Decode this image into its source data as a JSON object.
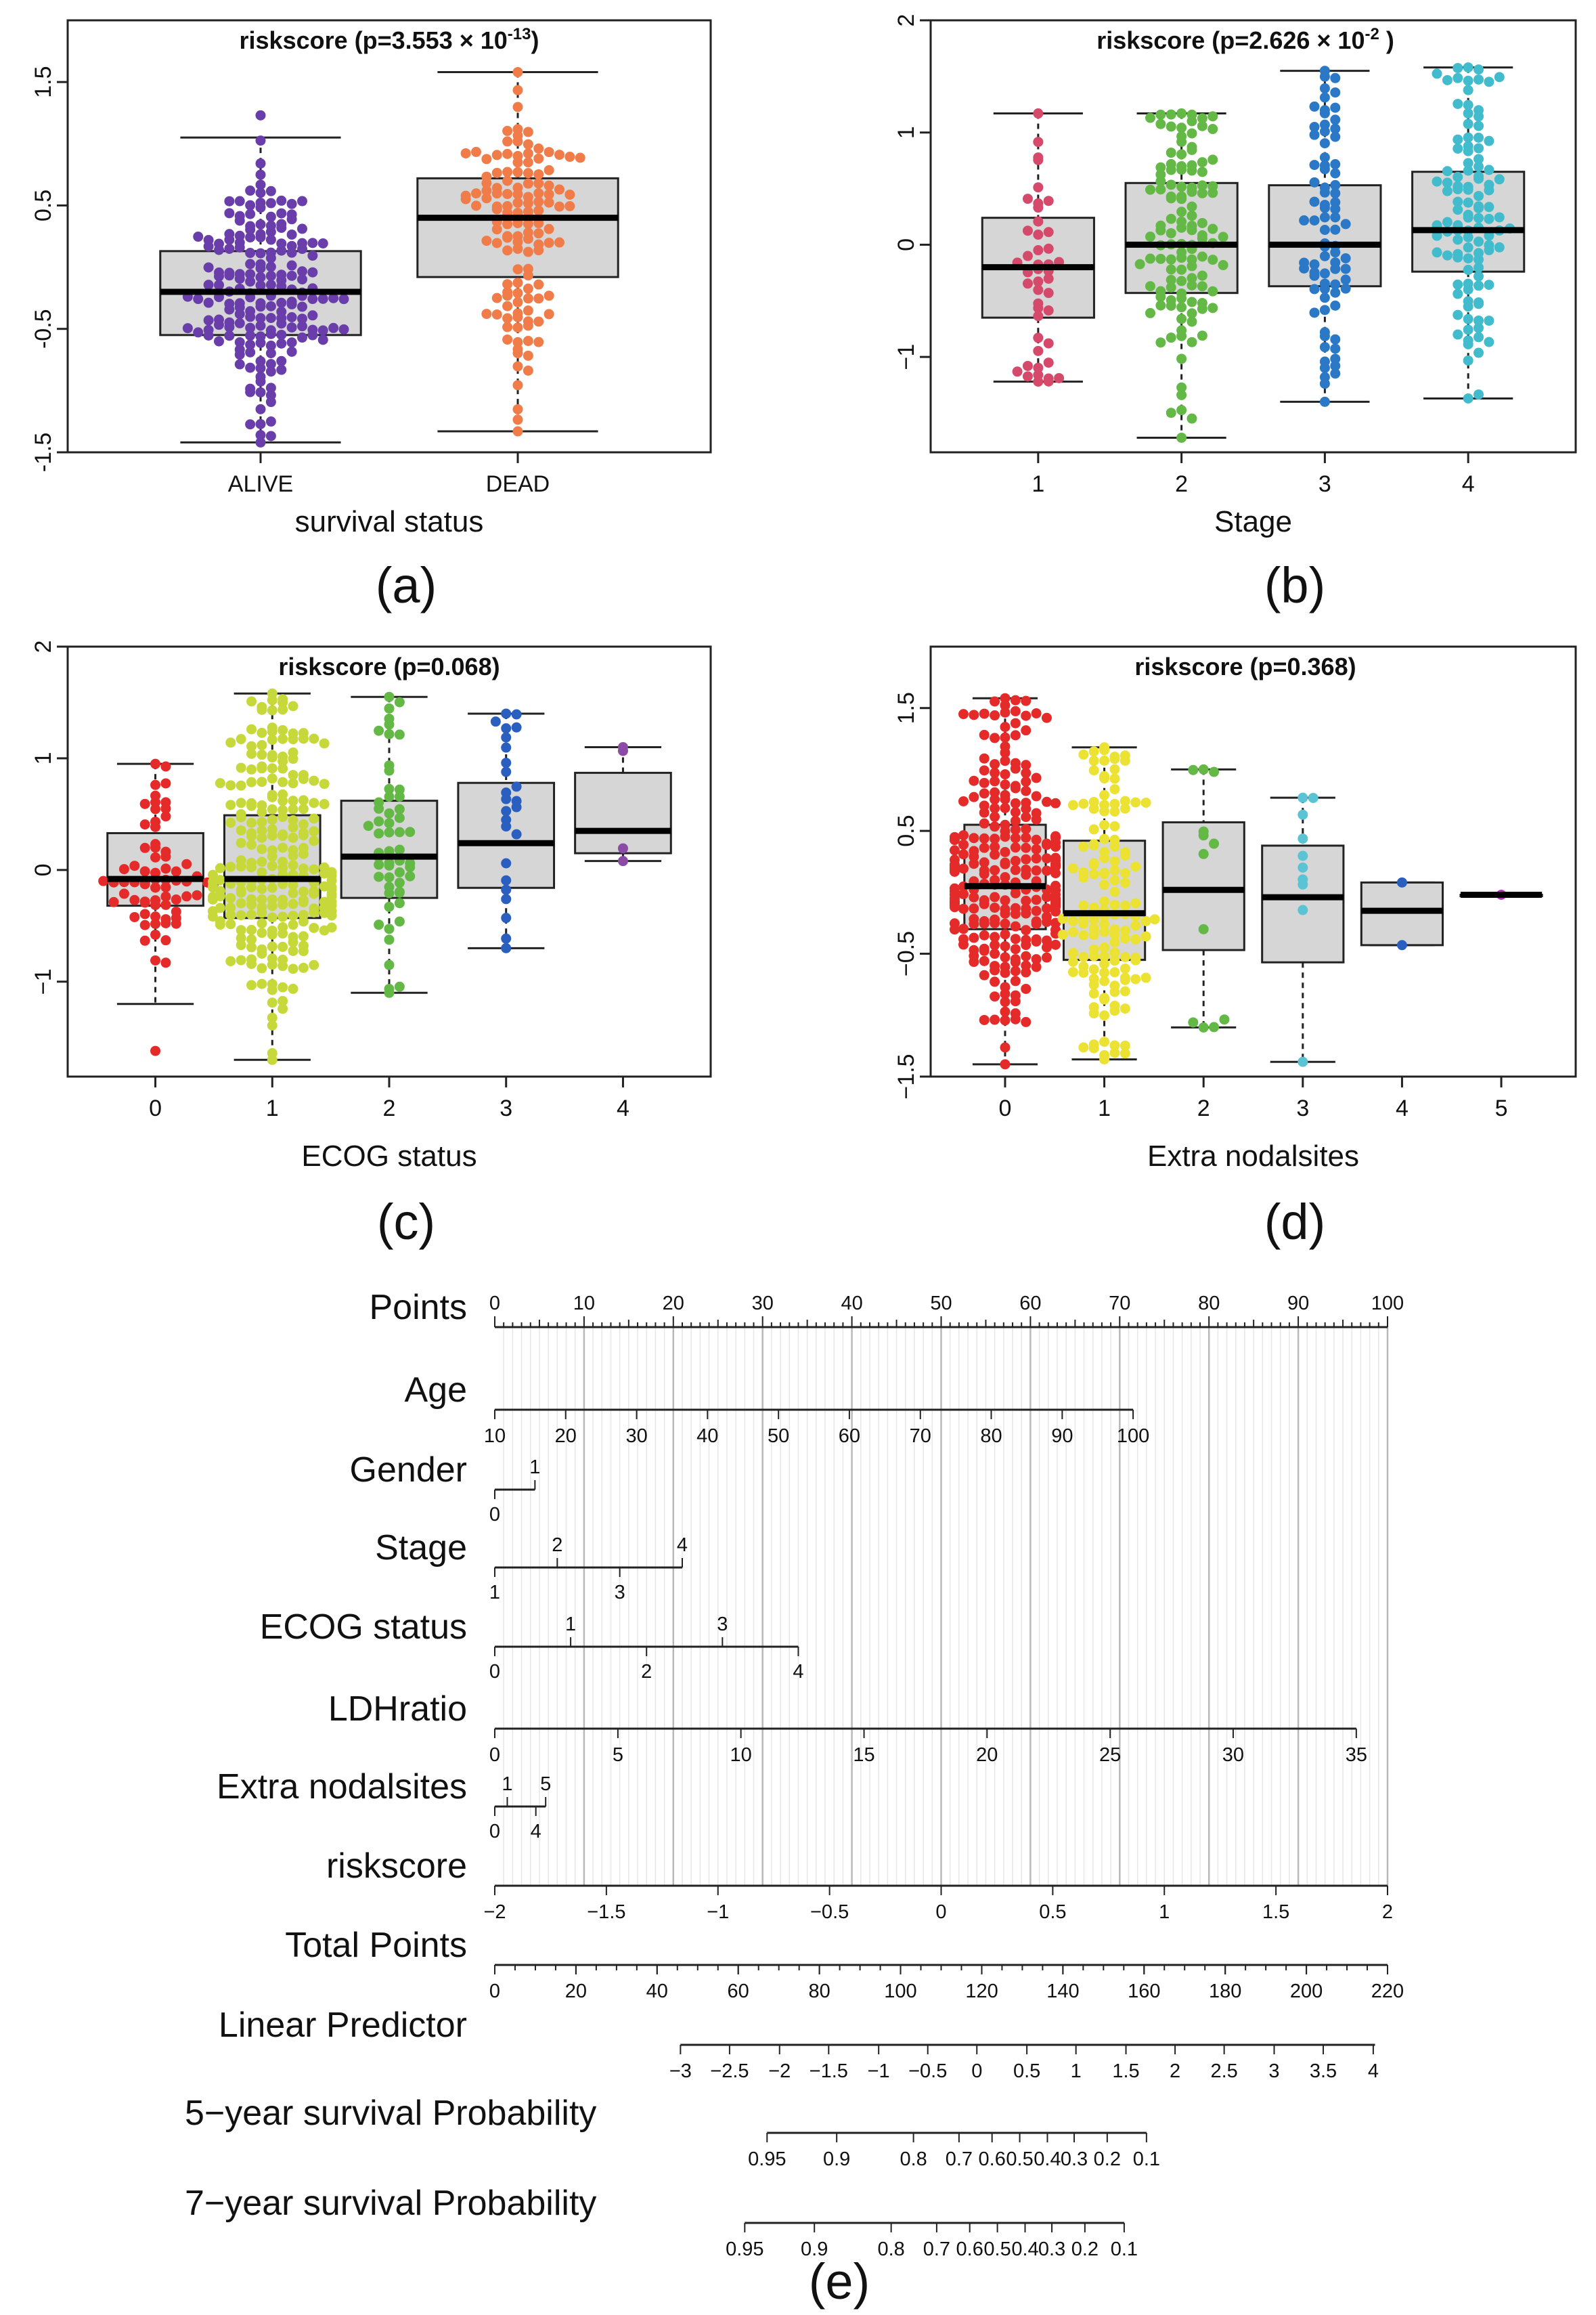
{
  "chart_data": [
    {
      "id": "a",
      "type": "boxplot",
      "panel_label": "(a)",
      "title": "riskscore (p=3.553 × 10",
      "title_sup": "-13",
      "title_close": ")",
      "xlabel": "survival status",
      "ylabel": "",
      "ylim": [
        -1.5,
        2.0
      ],
      "yticks": [
        -1.5,
        -0.5,
        0.5,
        1.5
      ],
      "ytick_labels": [
        "-1.5",
        "-0.5",
        "0.5",
        "1.5"
      ],
      "groups": [
        {
          "label": "ALIVE",
          "color": "#6a3eaa",
          "min": -1.42,
          "q1": -0.55,
          "median": -0.2,
          "q3": 0.13,
          "max": 1.05,
          "n": 190,
          "lo": -1.42,
          "hi": 1.23
        },
        {
          "label": "DEAD",
          "color": "#f07c4a",
          "min": -1.33,
          "q1": -0.08,
          "median": 0.4,
          "q3": 0.72,
          "max": 1.58,
          "n": 130,
          "lo": -1.33,
          "hi": 1.58
        }
      ]
    },
    {
      "id": "b",
      "type": "boxplot",
      "panel_label": "(b)",
      "title": "riskscore (p=2.626 × 10",
      "title_sup": "-2",
      "title_close": " )",
      "xlabel": "Stage",
      "ylabel": "",
      "ylim": [
        -1.85,
        2.0
      ],
      "yticks": [
        -1,
        0,
        1,
        2
      ],
      "ytick_labels": [
        "−1",
        "0",
        "1",
        "2"
      ],
      "groups": [
        {
          "label": "1",
          "color": "#d54a6a",
          "min": -1.22,
          "q1": -0.65,
          "median": -0.2,
          "q3": 0.24,
          "max": 1.17,
          "n": 45,
          "lo": -1.22,
          "hi": 1.17
        },
        {
          "label": "2",
          "color": "#63b846",
          "min": -1.72,
          "q1": -0.43,
          "median": 0.0,
          "q3": 0.55,
          "max": 1.17,
          "n": 120,
          "lo": -1.72,
          "hi": 1.17
        },
        {
          "label": "3",
          "color": "#2a78c6",
          "min": -1.4,
          "q1": -0.37,
          "median": 0.0,
          "q3": 0.53,
          "max": 1.55,
          "n": 80,
          "lo": -1.4,
          "hi": 1.55
        },
        {
          "label": "4",
          "color": "#42bccc",
          "min": -1.37,
          "q1": -0.24,
          "median": 0.13,
          "q3": 0.65,
          "max": 1.58,
          "n": 110,
          "lo": -1.37,
          "hi": 1.58
        }
      ]
    },
    {
      "id": "c",
      "type": "boxplot",
      "panel_label": "(c)",
      "title": "riskscore (p=0.068)",
      "title_sup": "",
      "title_close": "",
      "xlabel": "ECOG status",
      "ylabel": "",
      "ylim": [
        -1.85,
        2.0
      ],
      "yticks": [
        -1,
        0,
        1,
        2
      ],
      "ytick_labels": [
        "−1",
        "0",
        "1",
        "2"
      ],
      "groups": [
        {
          "label": "0",
          "color": "#e52a2a",
          "min": -1.2,
          "q1": -0.32,
          "median": -0.08,
          "q3": 0.33,
          "max": 0.95,
          "n": 70,
          "lo": -1.62,
          "hi": 0.95
        },
        {
          "label": "1",
          "color": "#c7d93a",
          "min": -1.7,
          "q1": -0.43,
          "median": -0.08,
          "q3": 0.49,
          "max": 1.58,
          "n": 250,
          "lo": -1.7,
          "hi": 1.58
        },
        {
          "label": "2",
          "color": "#63b846",
          "min": -1.1,
          "q1": -0.25,
          "median": 0.12,
          "q3": 0.62,
          "max": 1.55,
          "n": 55,
          "lo": -1.1,
          "hi": 1.55
        },
        {
          "label": "3",
          "color": "#2a5fc0",
          "min": -0.7,
          "q1": -0.16,
          "median": 0.24,
          "q3": 0.78,
          "max": 1.4,
          "n": 25,
          "lo": -0.7,
          "hi": 1.4
        },
        {
          "label": "4",
          "color": "#8b4ba6",
          "min": 0.08,
          "q1": 0.15,
          "median": 0.35,
          "q3": 0.87,
          "max": 1.1,
          "n": 4,
          "lo": 0.08,
          "hi": 1.1
        }
      ]
    },
    {
      "id": "d",
      "type": "boxplot",
      "panel_label": "(d)",
      "title": "riskscore (p=0.368)",
      "title_sup": "",
      "title_close": "",
      "xlabel": "Extra nodalsites",
      "ylabel": "",
      "ylim": [
        -1.5,
        2.0
      ],
      "yticks": [
        -1.5,
        -0.5,
        0.5,
        1.5
      ],
      "ytick_labels": [
        "−1.5",
        "−0.5",
        "0.5",
        "1.5"
      ],
      "groups": [
        {
          "label": "0",
          "color": "#e52a2a",
          "min": -1.4,
          "q1": -0.3,
          "median": 0.05,
          "q3": 0.55,
          "max": 1.58,
          "n": 270,
          "lo": -1.4,
          "hi": 1.58
        },
        {
          "label": "1",
          "color": "#ebe234",
          "min": -1.36,
          "q1": -0.55,
          "median": -0.17,
          "q3": 0.42,
          "max": 1.18,
          "n": 140,
          "lo": -1.36,
          "hi": 1.18
        },
        {
          "label": "2",
          "color": "#63b846",
          "min": -1.1,
          "q1": -0.47,
          "median": 0.02,
          "q3": 0.57,
          "max": 1.0,
          "n": 12,
          "lo": -1.1,
          "hi": 1.0
        },
        {
          "label": "3",
          "color": "#5ac4d4",
          "min": -1.38,
          "q1": -0.57,
          "median": -0.04,
          "q3": 0.38,
          "max": 0.77,
          "n": 10,
          "lo": -1.38,
          "hi": 0.77
        },
        {
          "label": "4",
          "color": "#2a5fc0",
          "min": -0.43,
          "q1": -0.43,
          "median": -0.15,
          "q3": 0.08,
          "max": 0.08,
          "n": 2,
          "lo": -0.43,
          "hi": 0.08
        },
        {
          "label": "5",
          "color": "#b43ab4",
          "min": -0.02,
          "q1": -0.02,
          "median": -0.02,
          "q3": -0.02,
          "max": -0.02,
          "n": 1,
          "lo": -0.02,
          "hi": -0.02
        }
      ]
    },
    {
      "id": "e",
      "type": "nomogram",
      "panel_label": "(e)",
      "points_range": [
        0,
        100
      ],
      "rows": [
        {
          "label": "Points",
          "kind": "points",
          "start": 0,
          "end": 100,
          "ticks": [
            {
              "v": "0",
              "p": 0
            },
            {
              "v": "10",
              "p": 10
            },
            {
              "v": "20",
              "p": 20
            },
            {
              "v": "30",
              "p": 30
            },
            {
              "v": "40",
              "p": 40
            },
            {
              "v": "50",
              "p": 50
            },
            {
              "v": "60",
              "p": 60
            },
            {
              "v": "70",
              "p": 70
            },
            {
              "v": "80",
              "p": 80
            },
            {
              "v": "90",
              "p": 90
            },
            {
              "v": "100",
              "p": 100
            }
          ]
        },
        {
          "label": "Age",
          "kind": "below",
          "start": 0,
          "end": 71.5,
          "ticks": [
            {
              "v": "10",
              "p": 0
            },
            {
              "v": "20",
              "p": 7.94
            },
            {
              "v": "30",
              "p": 15.89
            },
            {
              "v": "40",
              "p": 23.83
            },
            {
              "v": "50",
              "p": 31.78
            },
            {
              "v": "60",
              "p": 39.72
            },
            {
              "v": "70",
              "p": 47.67
            },
            {
              "v": "80",
              "p": 55.61
            },
            {
              "v": "90",
              "p": 63.56
            },
            {
              "v": "100",
              "p": 71.5
            }
          ]
        },
        {
          "label": "Gender",
          "kind": "alt",
          "start": 0,
          "end": 4.5,
          "ticks": [
            {
              "v": "0",
              "p": 0,
              "pos": "below"
            },
            {
              "v": "1",
              "p": 4.5,
              "pos": "above"
            }
          ]
        },
        {
          "label": "Stage",
          "kind": "alt",
          "start": 0,
          "end": 21,
          "ticks": [
            {
              "v": "1",
              "p": 0,
              "pos": "below"
            },
            {
              "v": "2",
              "p": 7,
              "pos": "above"
            },
            {
              "v": "3",
              "p": 14,
              "pos": "below"
            },
            {
              "v": "4",
              "p": 21,
              "pos": "above"
            }
          ]
        },
        {
          "label": "ECOG status",
          "kind": "alt",
          "start": 0,
          "end": 34,
          "ticks": [
            {
              "v": "0",
              "p": 0,
              "pos": "below"
            },
            {
              "v": "1",
              "p": 8.5,
              "pos": "above"
            },
            {
              "v": "2",
              "p": 17,
              "pos": "below"
            },
            {
              "v": "3",
              "p": 25.5,
              "pos": "above"
            },
            {
              "v": "4",
              "p": 34,
              "pos": "below"
            }
          ]
        },
        {
          "label": "LDHratio",
          "kind": "below",
          "start": 0,
          "end": 96.5,
          "ticks": [
            {
              "v": "0",
              "p": 0
            },
            {
              "v": "5",
              "p": 13.79
            },
            {
              "v": "10",
              "p": 27.57
            },
            {
              "v": "15",
              "p": 41.36
            },
            {
              "v": "20",
              "p": 55.14
            },
            {
              "v": "25",
              "p": 68.93
            },
            {
              "v": "30",
              "p": 82.71
            },
            {
              "v": "35",
              "p": 96.5
            }
          ]
        },
        {
          "label": "Extra nodalsites",
          "kind": "alt",
          "start": 0,
          "end": 5.7,
          "ticks": [
            {
              "v": "0",
              "p": 0,
              "pos": "below"
            },
            {
              "v": "1",
              "p": 1.4,
              "pos": "above"
            },
            {
              "v": "4",
              "p": 4.6,
              "pos": "below"
            },
            {
              "v": "5",
              "p": 5.7,
              "pos": "above"
            }
          ]
        },
        {
          "label": "riskscore",
          "kind": "below",
          "start": 0,
          "end": 100,
          "ticks": [
            {
              "v": "−2",
              "p": 0
            },
            {
              "v": "−1.5",
              "p": 12.5
            },
            {
              "v": "−1",
              "p": 25
            },
            {
              "v": "−0.5",
              "p": 37.5
            },
            {
              "v": "0",
              "p": 50
            },
            {
              "v": "0.5",
              "p": 62.5
            },
            {
              "v": "1",
              "p": 75
            },
            {
              "v": "1.5",
              "p": 87.5
            },
            {
              "v": "2",
              "p": 100
            }
          ]
        },
        {
          "label": "Total Points",
          "kind": "below",
          "start": 0,
          "end": 100,
          "ticks": [
            {
              "v": "0",
              "p": 0
            },
            {
              "v": "20",
              "p": 9.09
            },
            {
              "v": "40",
              "p": 18.18
            },
            {
              "v": "60",
              "p": 27.27
            },
            {
              "v": "80",
              "p": 36.36
            },
            {
              "v": "100",
              "p": 45.45
            },
            {
              "v": "120",
              "p": 54.55
            },
            {
              "v": "140",
              "p": 63.64
            },
            {
              "v": "160",
              "p": 72.73
            },
            {
              "v": "180",
              "p": 81.82
            },
            {
              "v": "200",
              "p": 90.91
            },
            {
              "v": "220",
              "p": 100
            }
          ]
        },
        {
          "label": "Linear Predictor",
          "kind": "below",
          "start": 20.8,
          "end": 98.6,
          "ticks": [
            {
              "v": "−3",
              "p": 20.8
            },
            {
              "v": "−2.5",
              "p": 26.3
            },
            {
              "v": "−2",
              "p": 31.9
            },
            {
              "v": "−1.5",
              "p": 37.4
            },
            {
              "v": "−1",
              "p": 43.0
            },
            {
              "v": "−0.5",
              "p": 48.5
            },
            {
              "v": "0",
              "p": 54.0
            },
            {
              "v": "0.5",
              "p": 59.6
            },
            {
              "v": "1",
              "p": 65.1
            },
            {
              "v": "1.5",
              "p": 70.7
            },
            {
              "v": "2",
              "p": 76.2
            },
            {
              "v": "2.5",
              "p": 81.7
            },
            {
              "v": "3",
              "p": 87.3
            },
            {
              "v": "3.5",
              "p": 92.8
            },
            {
              "v": "4",
              "p": 98.4
            }
          ]
        },
        {
          "label": "5−year survival Probability",
          "kind": "below",
          "start": 30.5,
          "end": 73.0,
          "ticks": [
            {
              "v": "0.95",
              "p": 30.5
            },
            {
              "v": "0.9",
              "p": 38.3
            },
            {
              "v": "0.8",
              "p": 46.9
            },
            {
              "v": "0.7",
              "p": 52.0
            },
            {
              "v": "0.6",
              "p": 55.7
            },
            {
              "v": "0.5",
              "p": 58.8
            },
            {
              "v": "0.4",
              "p": 61.9
            },
            {
              "v": "0.3",
              "p": 64.9
            },
            {
              "v": "0.2",
              "p": 68.6
            },
            {
              "v": "0.1",
              "p": 73.0
            }
          ]
        },
        {
          "label": "7−year survival Probability",
          "kind": "below",
          "start": 28.0,
          "end": 70.5,
          "ticks": [
            {
              "v": "0.95",
              "p": 28.0
            },
            {
              "v": "0.9",
              "p": 35.8
            },
            {
              "v": "0.8",
              "p": 44.4
            },
            {
              "v": "0.7",
              "p": 49.5
            },
            {
              "v": "0.6",
              "p": 53.2
            },
            {
              "v": "0.5",
              "p": 56.3
            },
            {
              "v": "0.4",
              "p": 59.4
            },
            {
              "v": "0.3",
              "p": 62.4
            },
            {
              "v": "0.2",
              "p": 66.1
            },
            {
              "v": "0.1",
              "p": 70.5
            }
          ]
        }
      ]
    }
  ]
}
